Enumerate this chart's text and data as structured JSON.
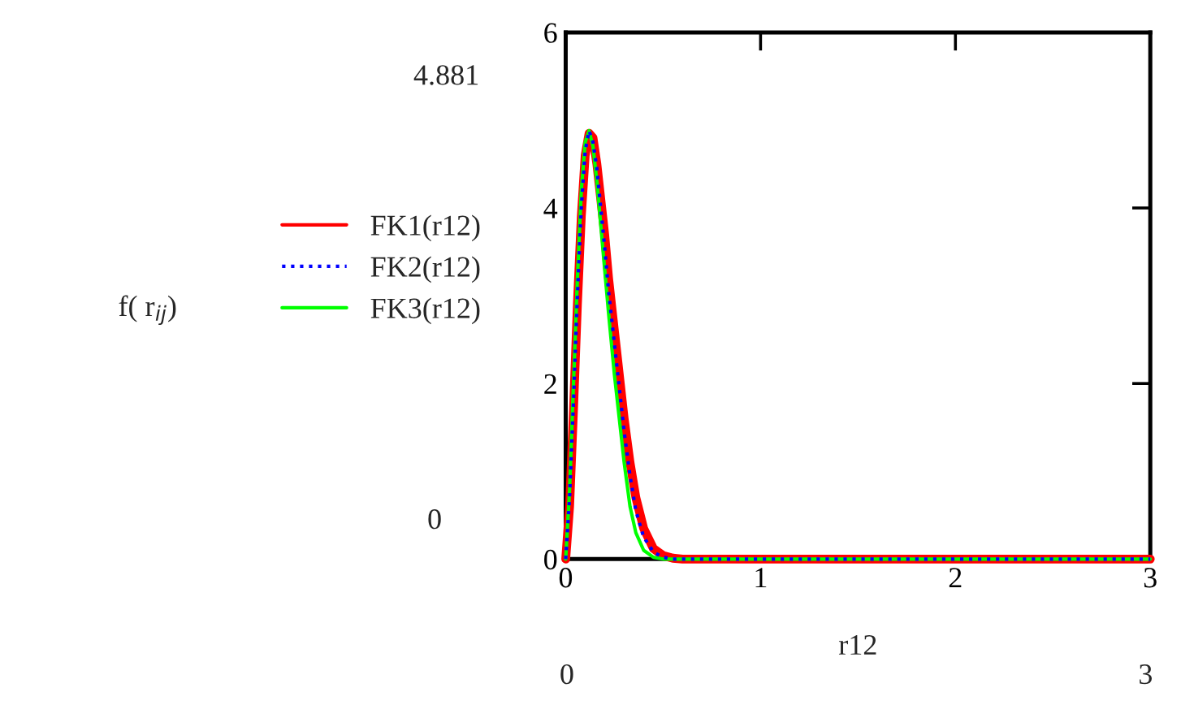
{
  "chart_data": {
    "type": "line",
    "xlabel": "r12",
    "x": [
      0,
      0.02,
      0.04,
      0.06,
      0.08,
      0.1,
      0.12,
      0.14,
      0.16,
      0.18,
      0.2,
      0.22,
      0.25,
      0.28,
      0.3,
      0.33,
      0.36,
      0.4,
      0.45,
      0.5,
      0.55,
      0.6,
      1,
      2,
      3
    ],
    "series": [
      {
        "name": "FK1(r12)",
        "color": "#ff0000",
        "line_style": "solid",
        "values": [
          0,
          0.6,
          1.7,
          2.9,
          3.9,
          4.6,
          4.85,
          4.8,
          4.5,
          4.1,
          3.7,
          3.2,
          2.6,
          2.0,
          1.6,
          1.1,
          0.7,
          0.35,
          0.12,
          0.04,
          0.01,
          0,
          0,
          0,
          0
        ]
      },
      {
        "name": "FK2(r12)",
        "color": "#0000ff",
        "line_style": "dotted",
        "values": [
          0,
          0.7,
          1.8,
          3.0,
          4.0,
          4.65,
          4.88,
          4.75,
          4.45,
          4.0,
          3.55,
          3.05,
          2.45,
          1.85,
          1.45,
          0.95,
          0.55,
          0.25,
          0.08,
          0.02,
          0,
          0,
          0,
          0,
          0
        ]
      },
      {
        "name": "FK3(r12)",
        "color": "#00ff00",
        "line_style": "solid",
        "values": [
          0,
          0.8,
          2.0,
          3.2,
          4.2,
          4.75,
          4.88,
          4.7,
          4.3,
          3.8,
          3.3,
          2.8,
          2.1,
          1.5,
          1.1,
          0.6,
          0.3,
          0.1,
          0.02,
          0,
          0,
          0,
          0,
          0,
          0
        ]
      }
    ],
    "xlim": [
      0,
      3
    ],
    "ylim": [
      0,
      6
    ],
    "xticks": [
      0,
      1,
      2,
      3
    ],
    "yticks": [
      0,
      2,
      4,
      6
    ],
    "grid": false,
    "legend": "left",
    "annotations": [
      "f( r$_{ij}$)",
      "4.881",
      "0",
      "0",
      "3"
    ]
  }
}
